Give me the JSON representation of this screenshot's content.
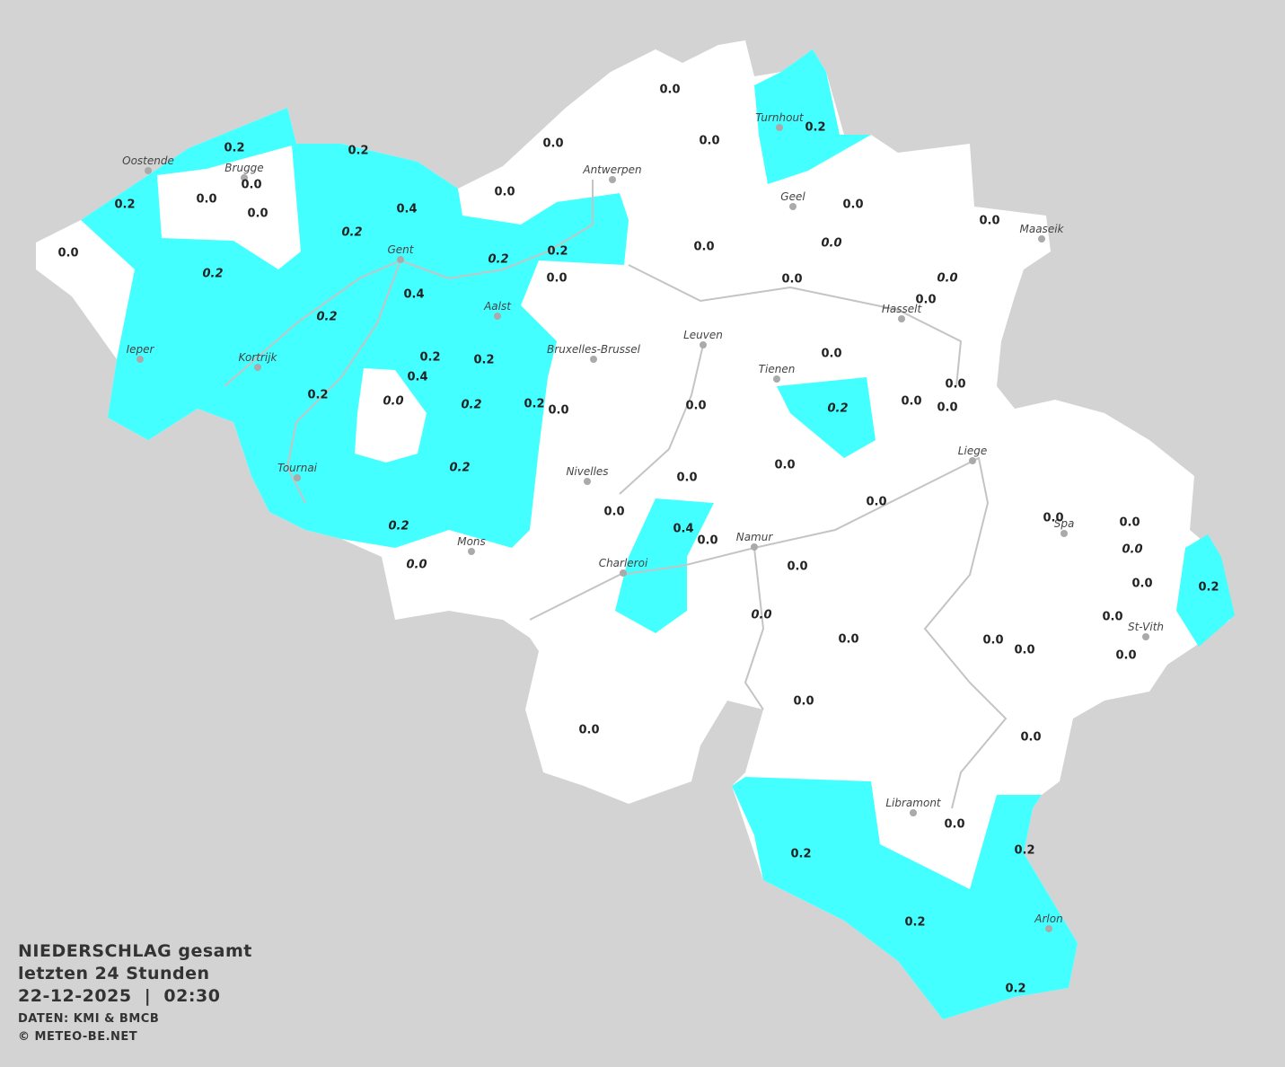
{
  "cities": [
    "Oostende",
    "Brugge",
    "Gent",
    "Aalst",
    "Antwerpen",
    "Turnhout",
    "Geel",
    "Maaseik",
    "Hasselt",
    "Leuven",
    "Tienen",
    "Bruxelles-Brussel",
    "Ieper",
    "Kortrijk",
    "Tournai",
    "Nivelles",
    "Mons",
    "Charleroi",
    "Namur",
    "Liege",
    "Spa",
    "St-Vith",
    "Libramont",
    "Arlon"
  ],
  "readings": [
    "0.0",
    "0.0",
    "0.0",
    "0.2",
    "0.2",
    "0.2",
    "0.0",
    "0.0",
    "0.0",
    "0.0",
    "0.2",
    "0.4",
    "0.2",
    "0.0",
    "0.0",
    "0.0",
    "0.0",
    "0.0",
    "0.2",
    "0.2",
    "0.2",
    "0.0",
    "0.0",
    "0.0",
    "0.0",
    "0.4",
    "0.2",
    "0.0",
    "0.2",
    "0.2",
    "0.4",
    "0.0",
    "0.2",
    "0.0",
    "0.2",
    "0.2",
    "0.0",
    "0.0",
    "0.2",
    "0.0",
    "0.0",
    "0.2",
    "0.0",
    "0.0",
    "0.0",
    "0.0",
    "0.0",
    "0.0",
    "0.4",
    "0.0",
    "0.0",
    "0.2",
    "0.0",
    "0.0",
    "0.0",
    "0.2",
    "0.0",
    "0.0",
    "0.0",
    "0.0",
    "0.0",
    "0.0",
    "0.0",
    "0.0",
    "0.0",
    "0.0",
    "0.2",
    "0.2",
    "0.2",
    "0.2"
  ],
  "legend": {
    "title": "NIEDERSCHLAG gesamt",
    "subtitle": "letzten 24 Stunden",
    "timestamp": "22-12-2025  |  02:30",
    "source": "DATEN: KMI & BMCB",
    "copyright": "© METEO-BE.NET"
  }
}
